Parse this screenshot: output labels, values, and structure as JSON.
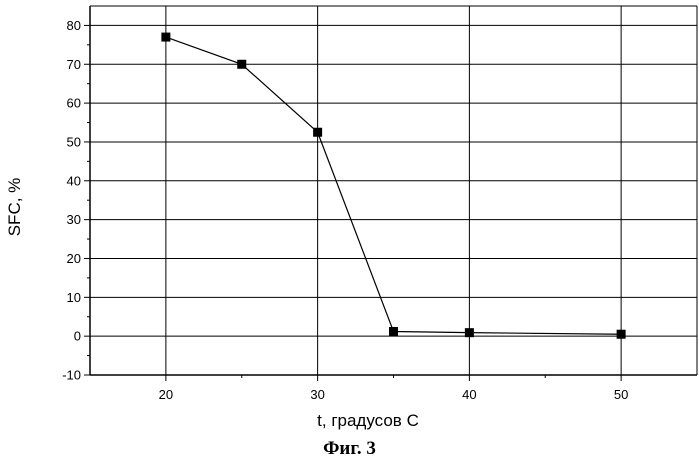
{
  "chart_data": {
    "type": "line",
    "title": "",
    "xlabel": "t, градусов C",
    "ylabel": "SFC, %",
    "xlim": [
      15,
      55
    ],
    "ylim": [
      -10,
      85
    ],
    "x_ticks": [
      20,
      30,
      40,
      50
    ],
    "y_ticks": [
      -10,
      0,
      10,
      20,
      30,
      40,
      50,
      60,
      70,
      80
    ],
    "grid": true,
    "legend": "none",
    "series": [
      {
        "marker": "square",
        "color": "#000000",
        "points": [
          {
            "x": 20,
            "y": 77
          },
          {
            "x": 25,
            "y": 70
          },
          {
            "x": 30,
            "y": 52.5
          },
          {
            "x": 35,
            "y": 1.2
          },
          {
            "x": 40,
            "y": 0.9
          },
          {
            "x": 50,
            "y": 0.5
          }
        ]
      }
    ]
  },
  "caption": "Фиг. 3"
}
